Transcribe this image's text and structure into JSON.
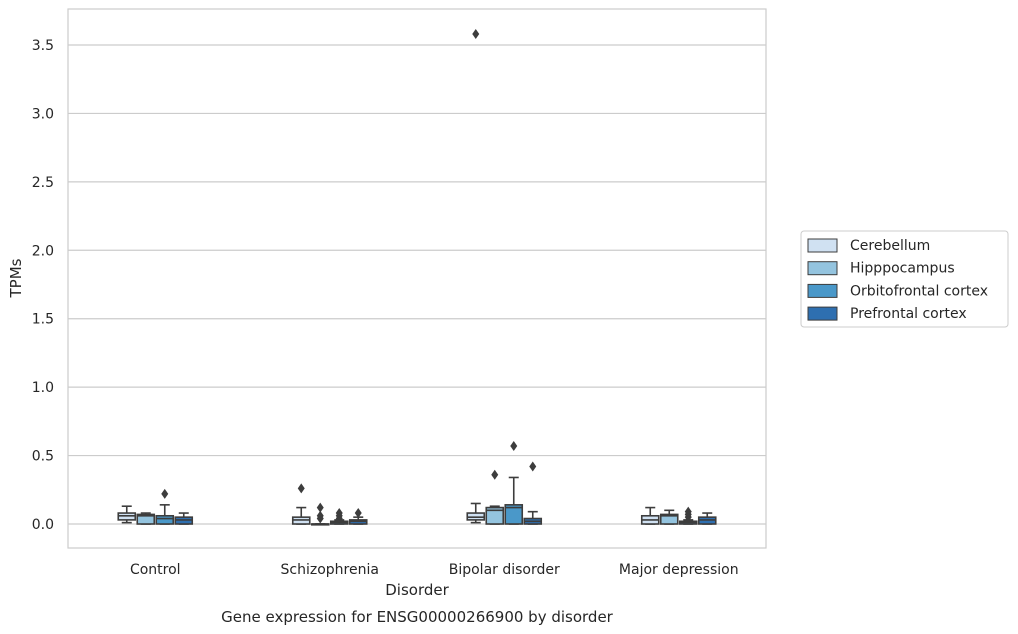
{
  "chart_data": {
    "type": "box",
    "title": "",
    "caption": "Gene expression for ENSG00000266900 by disorder",
    "xlabel": "Disorder",
    "ylabel": "TPMs",
    "ylim": [
      -0.17,
      3.76
    ],
    "yticks": [
      "0.0",
      "0.5",
      "1.0",
      "1.5",
      "2.0",
      "2.5",
      "3.0",
      "3.5"
    ],
    "grid": "horizontal",
    "legend_position": "right",
    "categories": [
      "Control",
      "Schizophrenia",
      "Bipolar disorder",
      "Major depression"
    ],
    "series": [
      {
        "name": "Cerebellum",
        "color": "#d0e1f2",
        "boxes": [
          {
            "min": 0.01,
            "q1": 0.03,
            "median": 0.06,
            "q3": 0.08,
            "max": 0.13,
            "outliers": []
          },
          {
            "min": 0.0,
            "q1": 0.0,
            "median": 0.03,
            "q3": 0.05,
            "max": 0.12,
            "outliers": [
              0.26
            ]
          },
          {
            "min": 0.01,
            "q1": 0.03,
            "median": 0.05,
            "q3": 0.08,
            "max": 0.15,
            "outliers": [
              3.58
            ]
          },
          {
            "min": 0.0,
            "q1": 0.0,
            "median": 0.03,
            "q3": 0.06,
            "max": 0.12,
            "outliers": []
          }
        ]
      },
      {
        "name": "Hipppocampus",
        "color": "#94c4df",
        "boxes": [
          {
            "min": 0.0,
            "q1": 0.0,
            "median": 0.06,
            "q3": 0.07,
            "max": 0.08,
            "outliers": []
          },
          {
            "min": 0.0,
            "q1": 0.0,
            "median": 0.0,
            "q3": 0.0,
            "max": 0.0,
            "outliers": [
              0.04,
              0.06,
              0.12
            ]
          },
          {
            "min": 0.0,
            "q1": 0.0,
            "median": 0.1,
            "q3": 0.12,
            "max": 0.13,
            "outliers": [
              0.36
            ]
          },
          {
            "min": 0.0,
            "q1": 0.0,
            "median": 0.06,
            "q3": 0.07,
            "max": 0.1,
            "outliers": []
          }
        ]
      },
      {
        "name": "Orbitofrontal cortex",
        "color": "#4a98c9",
        "boxes": [
          {
            "min": 0.0,
            "q1": 0.0,
            "median": 0.04,
            "q3": 0.06,
            "max": 0.14,
            "outliers": [
              0.22
            ]
          },
          {
            "min": 0.0,
            "q1": 0.0,
            "median": 0.01,
            "q3": 0.02,
            "max": 0.03,
            "outliers": [
              0.04,
              0.06,
              0.08
            ]
          },
          {
            "min": 0.0,
            "q1": 0.0,
            "median": 0.12,
            "q3": 0.14,
            "max": 0.34,
            "outliers": [
              0.57
            ]
          },
          {
            "min": 0.0,
            "q1": 0.0,
            "median": 0.01,
            "q3": 0.02,
            "max": 0.03,
            "outliers": [
              0.05,
              0.07,
              0.09
            ]
          }
        ]
      },
      {
        "name": "Prefrontal cortex",
        "color": "#2e6fb0",
        "boxes": [
          {
            "min": 0.0,
            "q1": 0.0,
            "median": 0.03,
            "q3": 0.05,
            "max": 0.08,
            "outliers": []
          },
          {
            "min": 0.0,
            "q1": 0.0,
            "median": 0.02,
            "q3": 0.03,
            "max": 0.05,
            "outliers": [
              0.08
            ]
          },
          {
            "min": 0.0,
            "q1": 0.0,
            "median": 0.02,
            "q3": 0.04,
            "max": 0.09,
            "outliers": [
              0.42
            ]
          },
          {
            "min": 0.0,
            "q1": 0.0,
            "median": 0.03,
            "q3": 0.05,
            "max": 0.08,
            "outliers": []
          }
        ]
      }
    ]
  }
}
